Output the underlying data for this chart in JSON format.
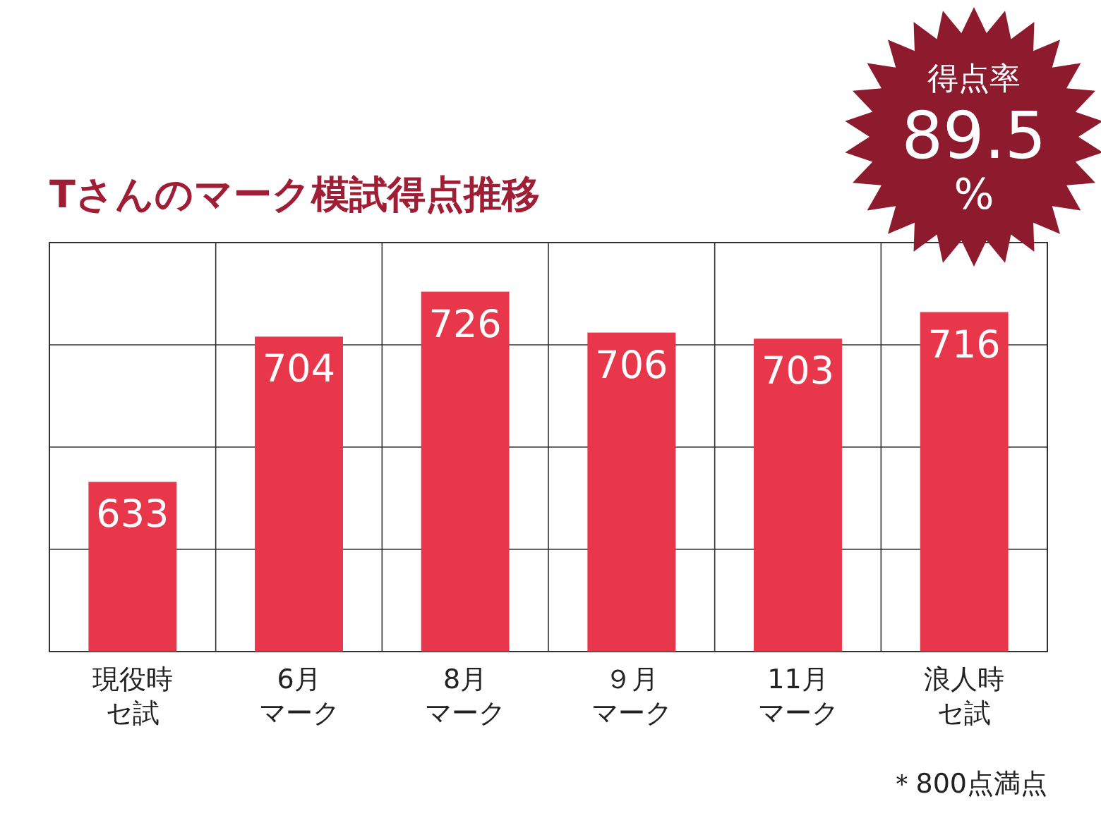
{
  "chart_data": {
    "type": "bar",
    "title": "Tさんのマーク模試得点推移",
    "categories": [
      "現役時セ試",
      "6月マーク",
      "8月マーク",
      "９月マーク",
      "11月マーク",
      "浪人時セ試"
    ],
    "values": [
      633,
      704,
      726,
      706,
      703,
      716
    ],
    "color": "#e8374a",
    "data_labels": true,
    "ylim": [
      550,
      750
    ],
    "yticks": [
      {
        "value": 550,
        "label": null
      },
      {
        "value": 600,
        "label": null
      },
      {
        "value": 650,
        "label": null
      },
      {
        "value": 700,
        "label": null
      },
      {
        "value": 750,
        "label": null
      }
    ],
    "tick_labels": "x",
    "grid": true,
    "annotations": [
      "得点率\n89.5\n%",
      "＊800点満点"
    ]
  }
}
